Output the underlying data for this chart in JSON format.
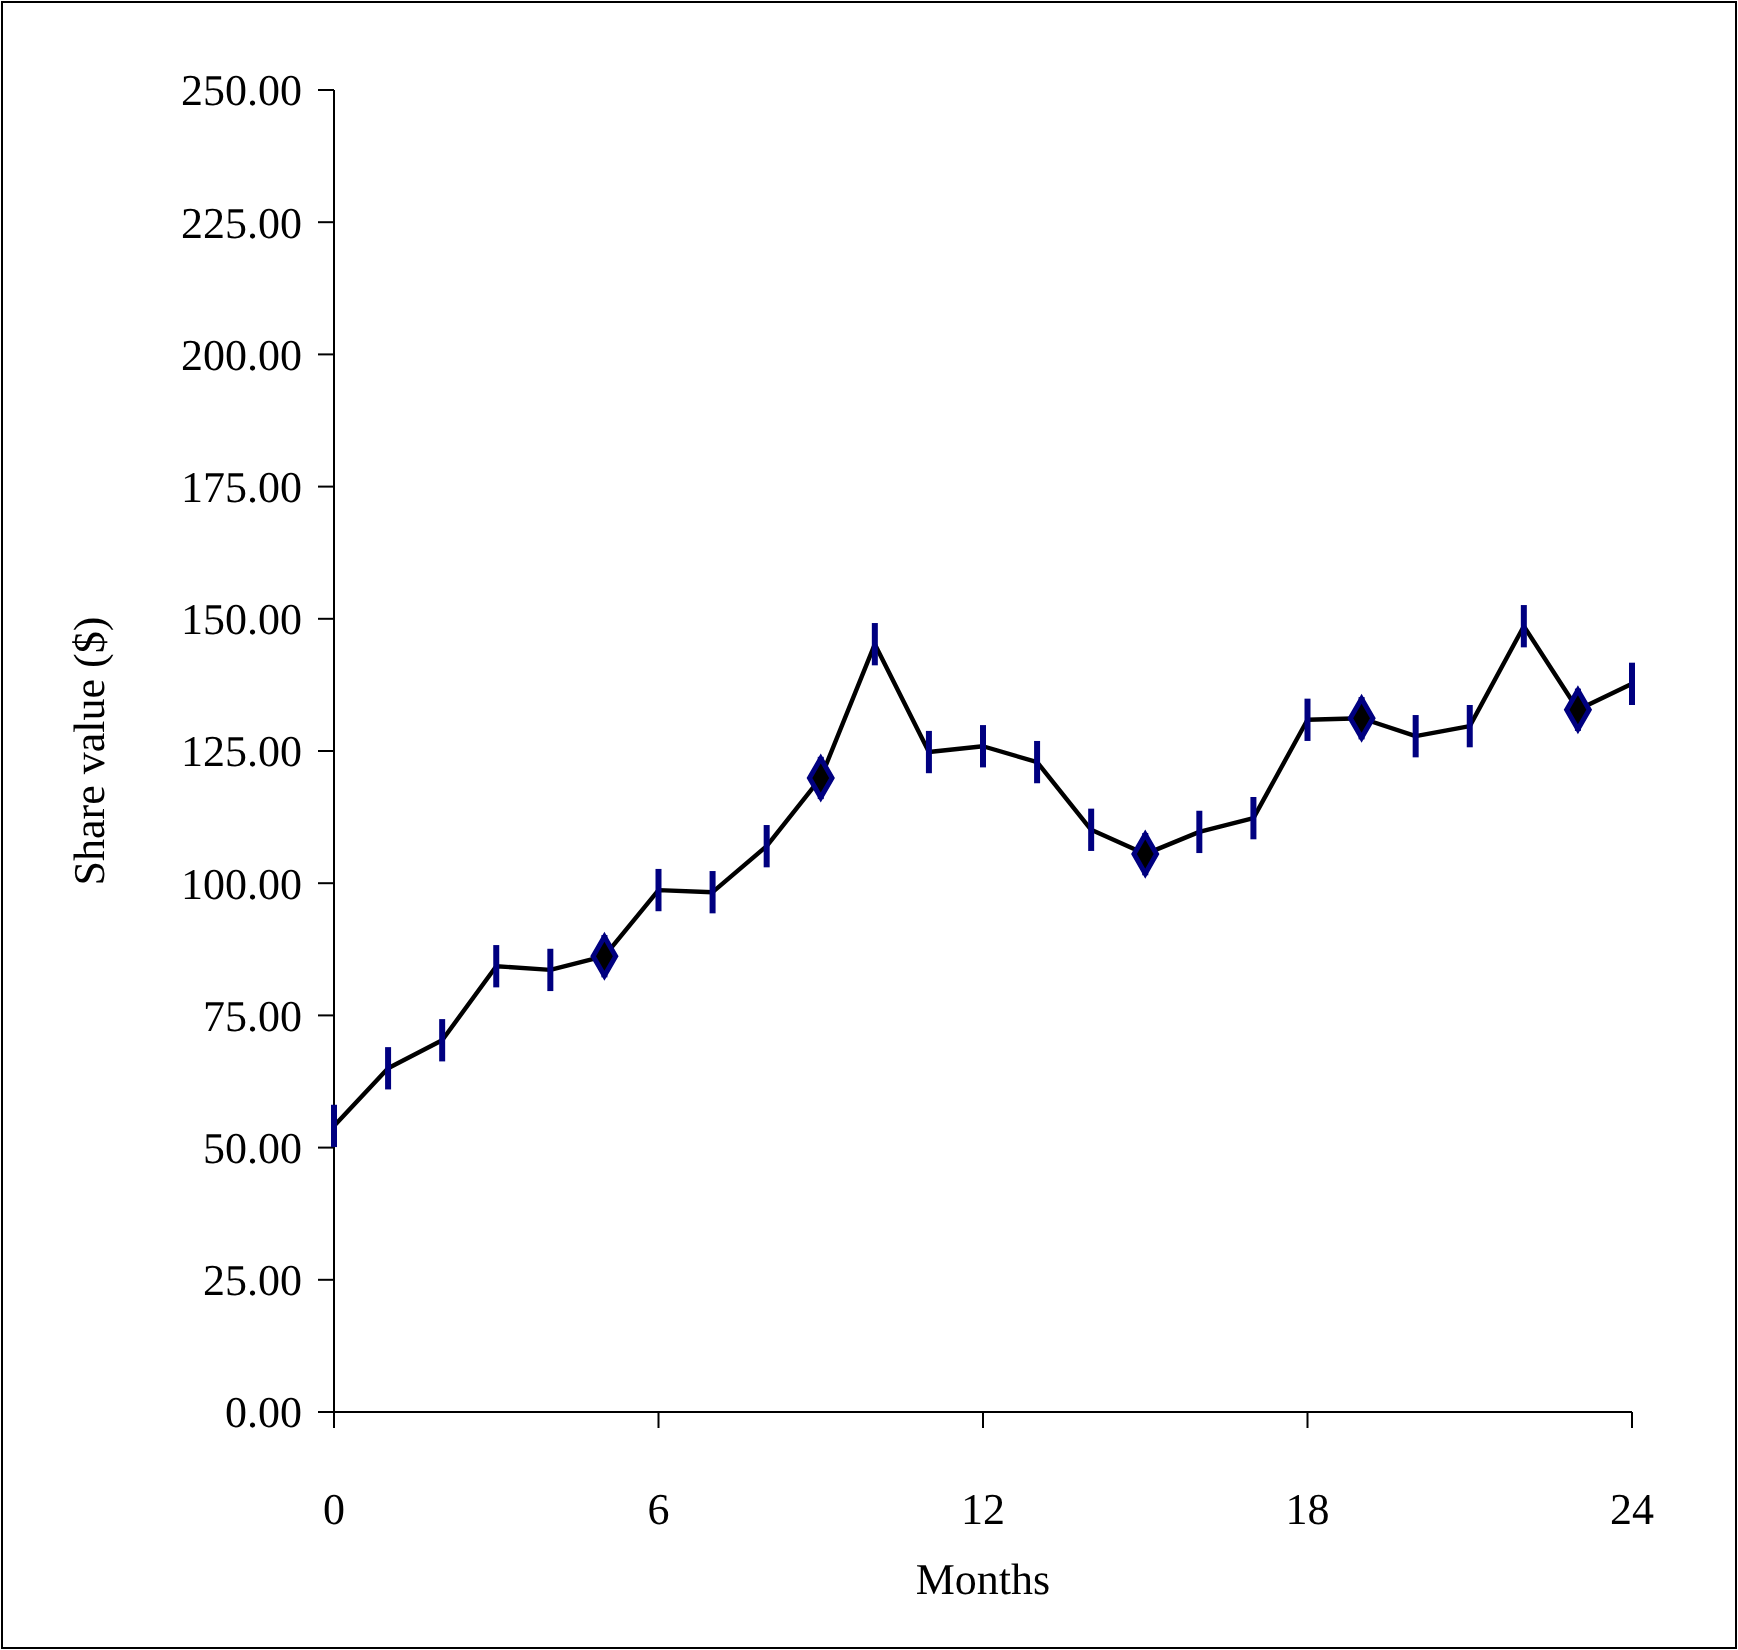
{
  "chart_data": {
    "type": "line",
    "xlabel": "Months",
    "ylabel": "Share value ($)",
    "xlim": [
      0,
      24
    ],
    "xticks": [
      0,
      6,
      12,
      18,
      24
    ],
    "ylim": [
      0,
      250
    ],
    "yticks": [
      {
        "value": 0,
        "label": "0.00"
      },
      {
        "value": 25,
        "label": "25.00"
      },
      {
        "value": 50,
        "label": "50.00"
      },
      {
        "value": 75,
        "label": "75.00"
      },
      {
        "value": 100,
        "label": "100.00"
      },
      {
        "value": 125,
        "label": "125.00"
      },
      {
        "value": 150,
        "label": "150.00"
      },
      {
        "value": 175,
        "label": "175.00"
      },
      {
        "value": 200,
        "label": "200.00"
      },
      {
        "value": 225,
        "label": "225.00"
      },
      {
        "value": 250,
        "label": "250.00"
      }
    ],
    "grid": false,
    "series": [
      {
        "color": "#000000",
        "marker": "none",
        "x": [
          0,
          1,
          2,
          3,
          4,
          5,
          6,
          7,
          8,
          9,
          10,
          11,
          12,
          13,
          14,
          15,
          16,
          17,
          18,
          19,
          20,
          21,
          22,
          23,
          24
        ],
        "values": [
          54.1,
          65.0,
          70.3,
          84.3,
          83.6,
          86.2,
          98.7,
          98.3,
          107.0,
          119.9,
          145.2,
          124.8,
          125.9,
          122.9,
          110.1,
          105.5,
          109.7,
          112.3,
          130.9,
          131.2,
          127.8,
          129.7,
          148.6,
          132.8,
          137.7
        ],
        "errors": [
          4,
          4,
          4,
          4,
          4,
          4,
          4,
          4,
          4,
          4,
          4,
          4,
          4,
          4,
          4,
          4,
          4,
          4,
          4,
          4,
          4,
          4,
          4,
          4,
          4
        ]
      },
      {
        "type": "scatter",
        "color": "#000080",
        "marker": "diamond",
        "x": [
          5,
          9,
          15,
          19,
          23
        ],
        "values": [
          86.2,
          119.9,
          105.5,
          131.2,
          132.8
        ]
      }
    ]
  }
}
